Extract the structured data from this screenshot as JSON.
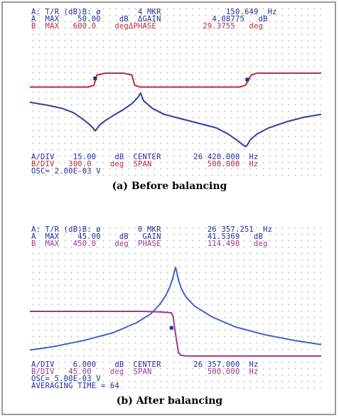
{
  "chart_data": [
    {
      "type": "line",
      "title": "(a) Before balancing",
      "header": [
        {
          "text": "A: T/R (dB)B: ø        4 MKR              150.649  Hz",
          "color": "blue"
        },
        {
          "text": "A  MAX    50.00    dB  ΔGAIN           4.08775   dB",
          "color": "blue"
        },
        {
          "text": "B  MAX   600.0    degΔPHASE          29.3755   deg",
          "color": "red"
        }
      ],
      "footer": [
        {
          "text": "A/DIV    15.00    dB  CENTER       26 420.000  Hz",
          "color": "blue"
        },
        {
          "text": "B/DIV   300.0    deg  SPAN            500.000  Hz",
          "color": "red"
        },
        {
          "text": "OSC= 2.00E-03 V",
          "color": "blue"
        }
      ],
      "x_center_hz": 26420.0,
      "span_hz": 500.0,
      "series": [
        {
          "color": "#2d3f9e",
          "x": [
            26170,
            26200,
            26225,
            26245,
            26260,
            26270,
            26278,
            26282,
            26285,
            26290,
            26300,
            26315,
            26330,
            26345,
            26355,
            26360,
            26365,
            26380,
            26400,
            26430,
            26460,
            26490,
            26510,
            26525,
            26535,
            26540,
            26543,
            26548,
            26560,
            26580,
            26610,
            26640,
            26670
          ],
          "y": [
            17.0,
            16.0,
            15.0,
            13.5,
            11.5,
            10.0,
            8.5,
            7.5,
            8.2,
            9.5,
            11.0,
            12.8,
            14.5,
            16.5,
            18.5,
            20.0,
            17.5,
            15.0,
            13.0,
            11.5,
            10.0,
            8.5,
            6.5,
            4.5,
            3.0,
            2.3,
            2.8,
            4.5,
            6.5,
            8.5,
            10.5,
            12.0,
            13.0
          ]
        },
        {
          "color": "#c0283a",
          "x": [
            26170,
            26270,
            26280,
            26285,
            26300,
            26330,
            26345,
            26350,
            26360,
            26530,
            26540,
            26550,
            26560,
            26670
          ],
          "y": [
            22.0,
            22.0,
            22.6,
            26.0,
            26.6,
            26.6,
            26.0,
            22.6,
            22.0,
            22.0,
            22.6,
            26.0,
            26.6,
            26.6
          ]
        }
      ],
      "markers": [
        {
          "x": 26282,
          "y": 24.9,
          "color": "#1e2f9c"
        },
        {
          "x": 26543,
          "y": 24.5,
          "color": "#1e2f9c"
        }
      ]
    },
    {
      "type": "line",
      "title": "(b) After balancing",
      "header": [
        {
          "text": "A: T/R (dB)B: ø        0 MKR          26 357.251  Hz",
          "color": "blue"
        },
        {
          "text": "A  MAX    45.00    dB   GAIN          41.5369   dB",
          "color": "blue"
        },
        {
          "text": "B  MAX   450.0    deg  PHASE          114.498   deg",
          "color": "mag"
        }
      ],
      "footer": [
        {
          "text": "A/DIV    6.000    dB  CENTER       26 357.000  Hz",
          "color": "blue"
        },
        {
          "text": "B/DIV   45.00    deg  SPAN            500.000  Hz",
          "color": "mag"
        },
        {
          "text": "OSC= 5.00E-03 V",
          "color": "blue"
        },
        {
          "text": "AVERAGING TIME = 64",
          "color": "blue"
        }
      ],
      "x_center_hz": 26357.0,
      "span_hz": 500.0,
      "series": [
        {
          "color": "#3f63c7",
          "x": [
            26107,
            26150,
            26200,
            26250,
            26290,
            26315,
            26330,
            26340,
            26347,
            26352,
            26355,
            26357,
            26359,
            26362,
            26367,
            26375,
            26390,
            26420,
            26460,
            26510,
            26560,
            26607
          ],
          "y": [
            4.4,
            5.7,
            7.8,
            10.5,
            14.0,
            17.2,
            20.5,
            23.5,
            26.5,
            29.5,
            32.0,
            33.5,
            32.0,
            29.0,
            26.0,
            23.0,
            19.8,
            16.0,
            12.5,
            9.8,
            7.8,
            6.3
          ]
        },
        {
          "color": "#a7338a",
          "x": [
            26107,
            26300,
            26330,
            26350,
            26353,
            26357,
            26362,
            26366,
            26375,
            26607
          ],
          "y": [
            18.0,
            18.0,
            17.8,
            17.5,
            16.0,
            10.0,
            3.5,
            2.6,
            2.3,
            2.3
          ]
        }
      ],
      "markers": [
        {
          "x": 26350,
          "y": 12.2,
          "color": "#1e2f9c"
        }
      ]
    }
  ]
}
